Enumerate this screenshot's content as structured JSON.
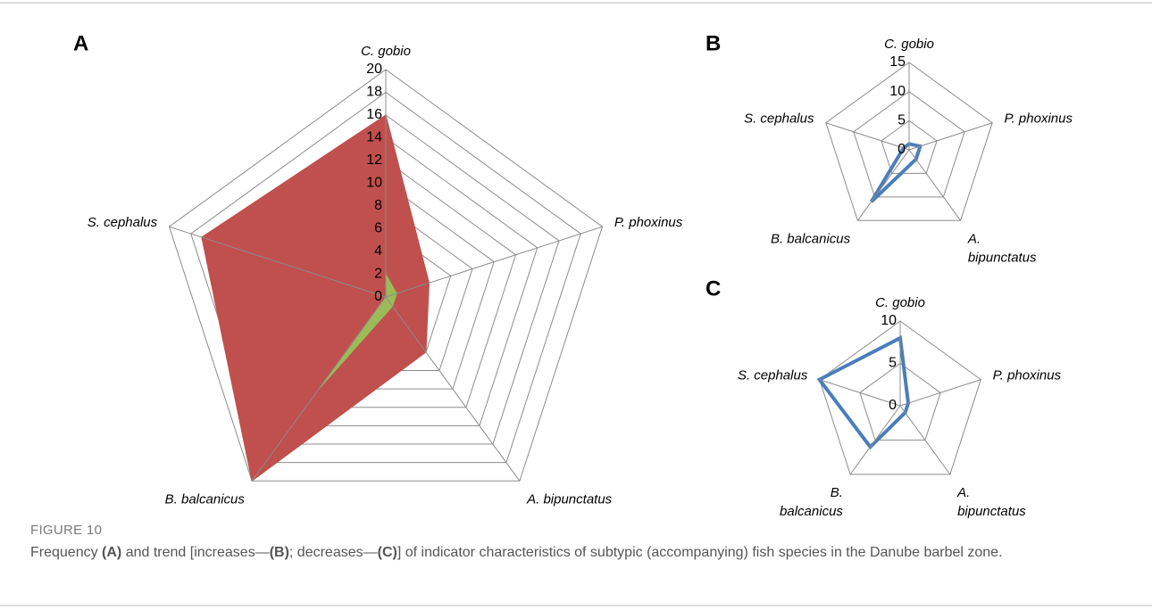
{
  "chart_data": [
    {
      "type": "radar",
      "label": "A",
      "categories": [
        "C. gobio",
        "P. phoxinus",
        "A. bipunctatus",
        "B. balcanicus",
        "S. cephalus"
      ],
      "rlim": [
        0,
        20
      ],
      "rticks": [
        0,
        2,
        4,
        6,
        8,
        10,
        12,
        14,
        16,
        18,
        20
      ],
      "series": [
        {
          "color": "#c0504d",
          "fill": true,
          "values": [
            16,
            4,
            6,
            20,
            17
          ]
        },
        {
          "color": "#9bbb59",
          "fill": true,
          "values": [
            2,
            1,
            1,
            10,
            0
          ]
        }
      ]
    },
    {
      "type": "radar",
      "label": "B",
      "categories": [
        "C. gobio",
        "P. phoxinus",
        "A. bipunctatus",
        "B. balcanicus",
        "S. cephalus"
      ],
      "wrap": [
        false,
        false,
        true,
        false,
        false
      ],
      "rlim": [
        0,
        15
      ],
      "rticks": [
        0,
        5,
        10,
        15
      ],
      "series": [
        {
          "color": "#4a7ebb",
          "fill": false,
          "values": [
            1,
            2,
            2,
            11,
            1
          ]
        }
      ]
    },
    {
      "type": "radar",
      "label": "C",
      "categories": [
        "C. gobio",
        "P. phoxinus",
        "A. bipunctatus",
        "B. balcanicus",
        "S. cephalus"
      ],
      "wrap": [
        false,
        false,
        true,
        true,
        false
      ],
      "rlim": [
        0,
        10
      ],
      "rticks": [
        0,
        5,
        10
      ],
      "series": [
        {
          "color": "#4a7ebb",
          "fill": false,
          "values": [
            8,
            1,
            1,
            6,
            10
          ]
        }
      ]
    }
  ],
  "figure": {
    "label": "FIGURE 10",
    "caption": [
      {
        "text": "Frequency ",
        "bold": false
      },
      {
        "text": "(A)",
        "bold": true
      },
      {
        "text": " and trend [increases—",
        "bold": false
      },
      {
        "text": "(B)",
        "bold": true
      },
      {
        "text": "; decreases—",
        "bold": false
      },
      {
        "text": "(C)",
        "bold": true
      },
      {
        "text": "] of indicator characteristics of subtypic (accompanying) fish species in the Danube barbel zone.",
        "bold": false
      }
    ]
  }
}
